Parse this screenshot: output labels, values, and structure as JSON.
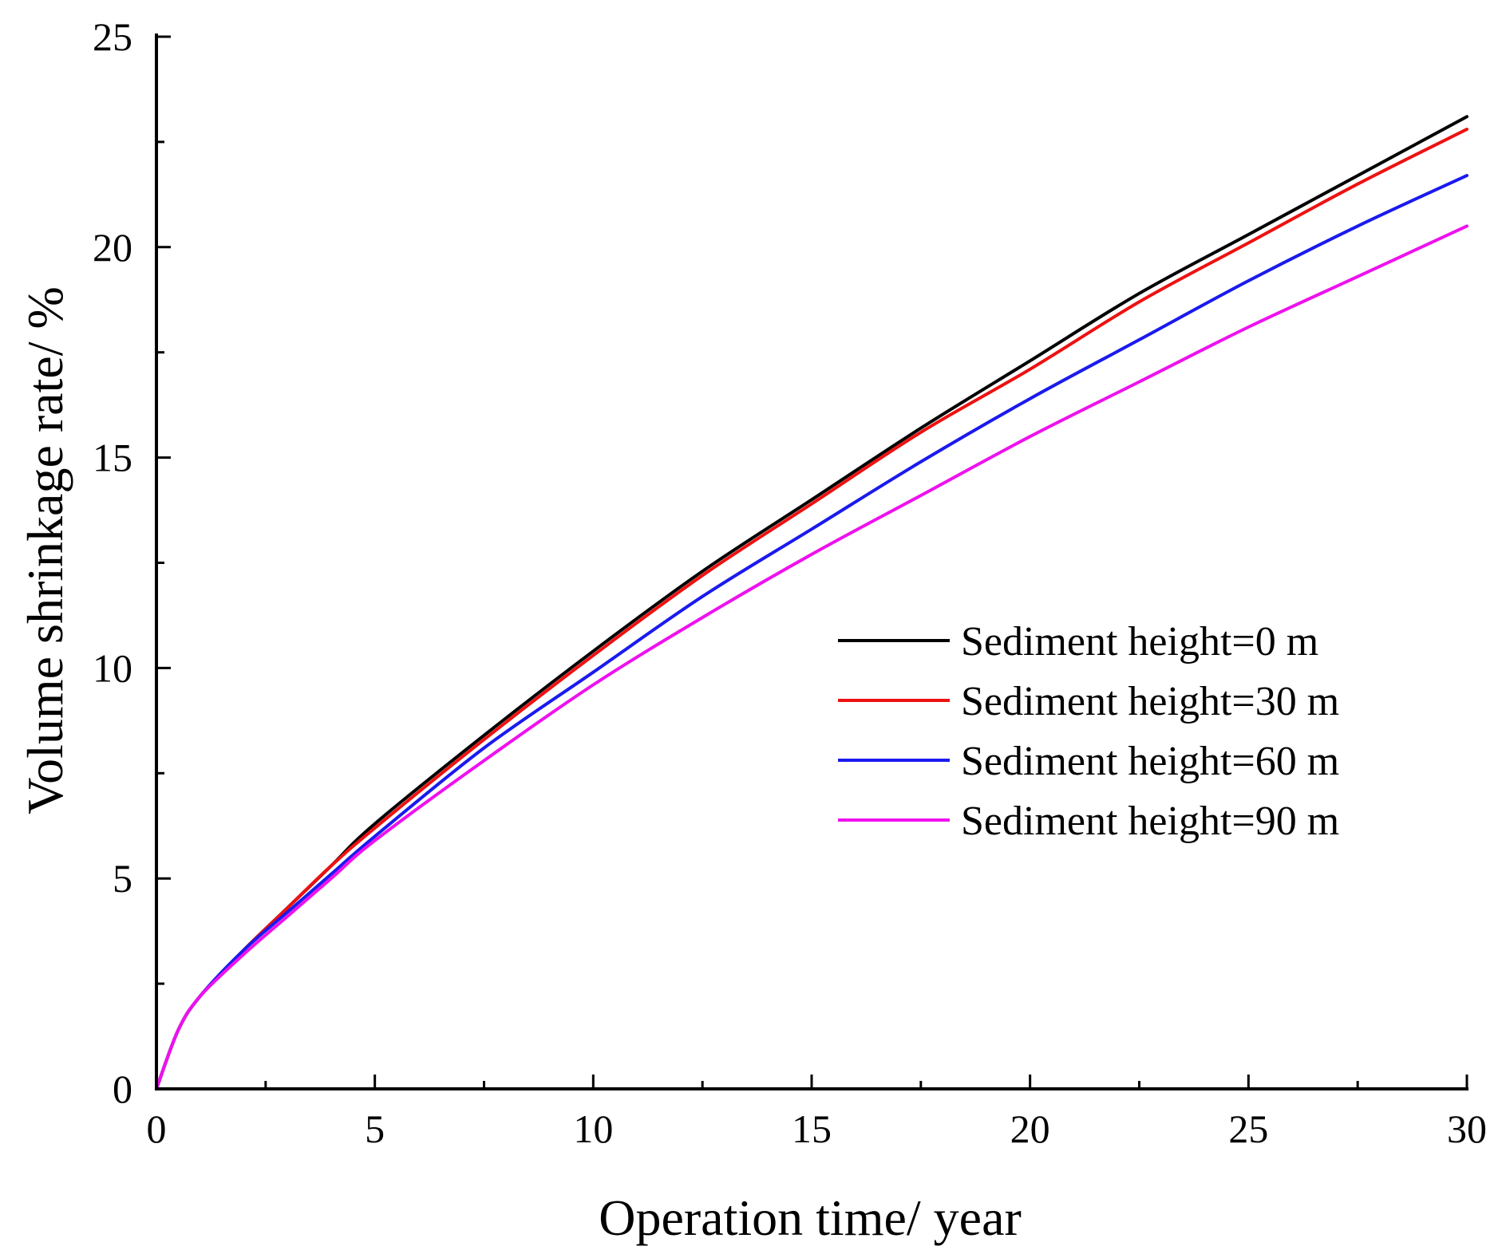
{
  "chart_data": {
    "type": "line",
    "title": "",
    "xlabel": "Operation time/ year",
    "ylabel": "Volume shrinkage rate/ %",
    "xlim": [
      0,
      30
    ],
    "ylim": [
      0,
      25
    ],
    "xticks": [
      0,
      5,
      10,
      15,
      20,
      25,
      30
    ],
    "yticks": [
      0,
      5,
      10,
      15,
      20,
      25
    ],
    "xtick_labels": [
      "0",
      "5",
      "10",
      "15",
      "20",
      "25",
      "30"
    ],
    "ytick_labels": [
      "0",
      "5",
      "10",
      "15",
      "20",
      "25"
    ],
    "grid": false,
    "legend_position": "center-right",
    "x": [
      0,
      0.5,
      1,
      2,
      3,
      4,
      5,
      7.5,
      10,
      12.5,
      15,
      17.5,
      20,
      22.5,
      25,
      27.5,
      30
    ],
    "series": [
      {
        "name": "Sediment height=0 m",
        "color": "#000000",
        "values": [
          0,
          1.4,
          2.2,
          3.3,
          4.3,
          5.3,
          6.3,
          8.4,
          10.4,
          12.3,
          14.0,
          15.7,
          17.3,
          18.9,
          20.3,
          21.7,
          23.1
        ]
      },
      {
        "name": "Sediment height=30 m",
        "color": "#ee1111",
        "values": [
          0,
          1.4,
          2.2,
          3.3,
          4.3,
          5.3,
          6.2,
          8.3,
          10.3,
          12.2,
          13.9,
          15.6,
          17.1,
          18.7,
          20.1,
          21.5,
          22.8
        ]
      },
      {
        "name": "Sediment height=60 m",
        "color": "#1a1aee",
        "values": [
          0,
          1.4,
          2.2,
          3.3,
          4.2,
          5.1,
          6.0,
          8.1,
          9.9,
          11.7,
          13.3,
          14.9,
          16.4,
          17.8,
          19.2,
          20.5,
          21.7
        ]
      },
      {
        "name": "Sediment height=90 m",
        "color": "#ee11ee",
        "values": [
          0,
          1.4,
          2.2,
          3.2,
          4.1,
          5.0,
          5.9,
          7.8,
          9.6,
          11.2,
          12.7,
          14.1,
          15.5,
          16.8,
          18.1,
          19.3,
          20.5
        ]
      }
    ]
  }
}
